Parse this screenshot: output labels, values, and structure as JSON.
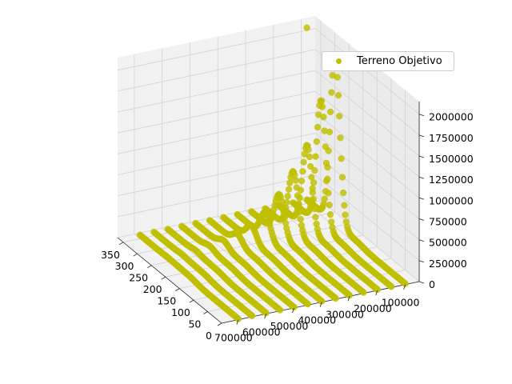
{
  "chart_data": {
    "type": "scatter",
    "projection": "3d",
    "title": "",
    "xlabel": "",
    "ylabel": "",
    "zlabel": "",
    "grid": true,
    "legend_placement": "upper-right",
    "marker_color": "#bfbf00",
    "x_axis": {
      "ticks": [
        0,
        50,
        100,
        150,
        200,
        250,
        300,
        350
      ],
      "tick_labels": [
        "0",
        "50",
        "100",
        "150",
        "200",
        "250",
        "300",
        "350"
      ],
      "range": [
        0,
        370
      ]
    },
    "y_axis": {
      "ticks": [
        100000,
        200000,
        300000,
        400000,
        500000,
        600000,
        700000
      ],
      "tick_labels": [
        "100000",
        "200000",
        "300000",
        "400000",
        "500000",
        "600000",
        "700000"
      ],
      "range": [
        50000,
        760000
      ]
    },
    "z_axis": {
      "ticks": [
        0,
        250000,
        500000,
        750000,
        1000000,
        1250000,
        1500000,
        1750000,
        2000000
      ],
      "tick_labels": [
        "0",
        "250000",
        "500000",
        "750000",
        "1000000",
        "1250000",
        "1500000",
        "1750000",
        "2000000"
      ],
      "range": [
        0,
        2150000
      ]
    },
    "series": [
      {
        "name": "Terreno Objetivo",
        "color": "#bfbf00",
        "structure": "sigmoid curves in x, one per y level",
        "y_levels": [
          100000,
          150000,
          200000,
          250000,
          300000,
          350000,
          400000,
          450000,
          500000,
          550000,
          600000,
          650000,
          700000
        ],
        "peak_x": 250,
        "peak_z": [
          2000000,
          1500000,
          1000000,
          720000,
          480000,
          300000,
          180000,
          110000,
          70000,
          40000,
          20000,
          10000,
          5000
        ],
        "outlier": {
          "x": 350,
          "y": 100000,
          "z": 2100000
        }
      }
    ]
  }
}
